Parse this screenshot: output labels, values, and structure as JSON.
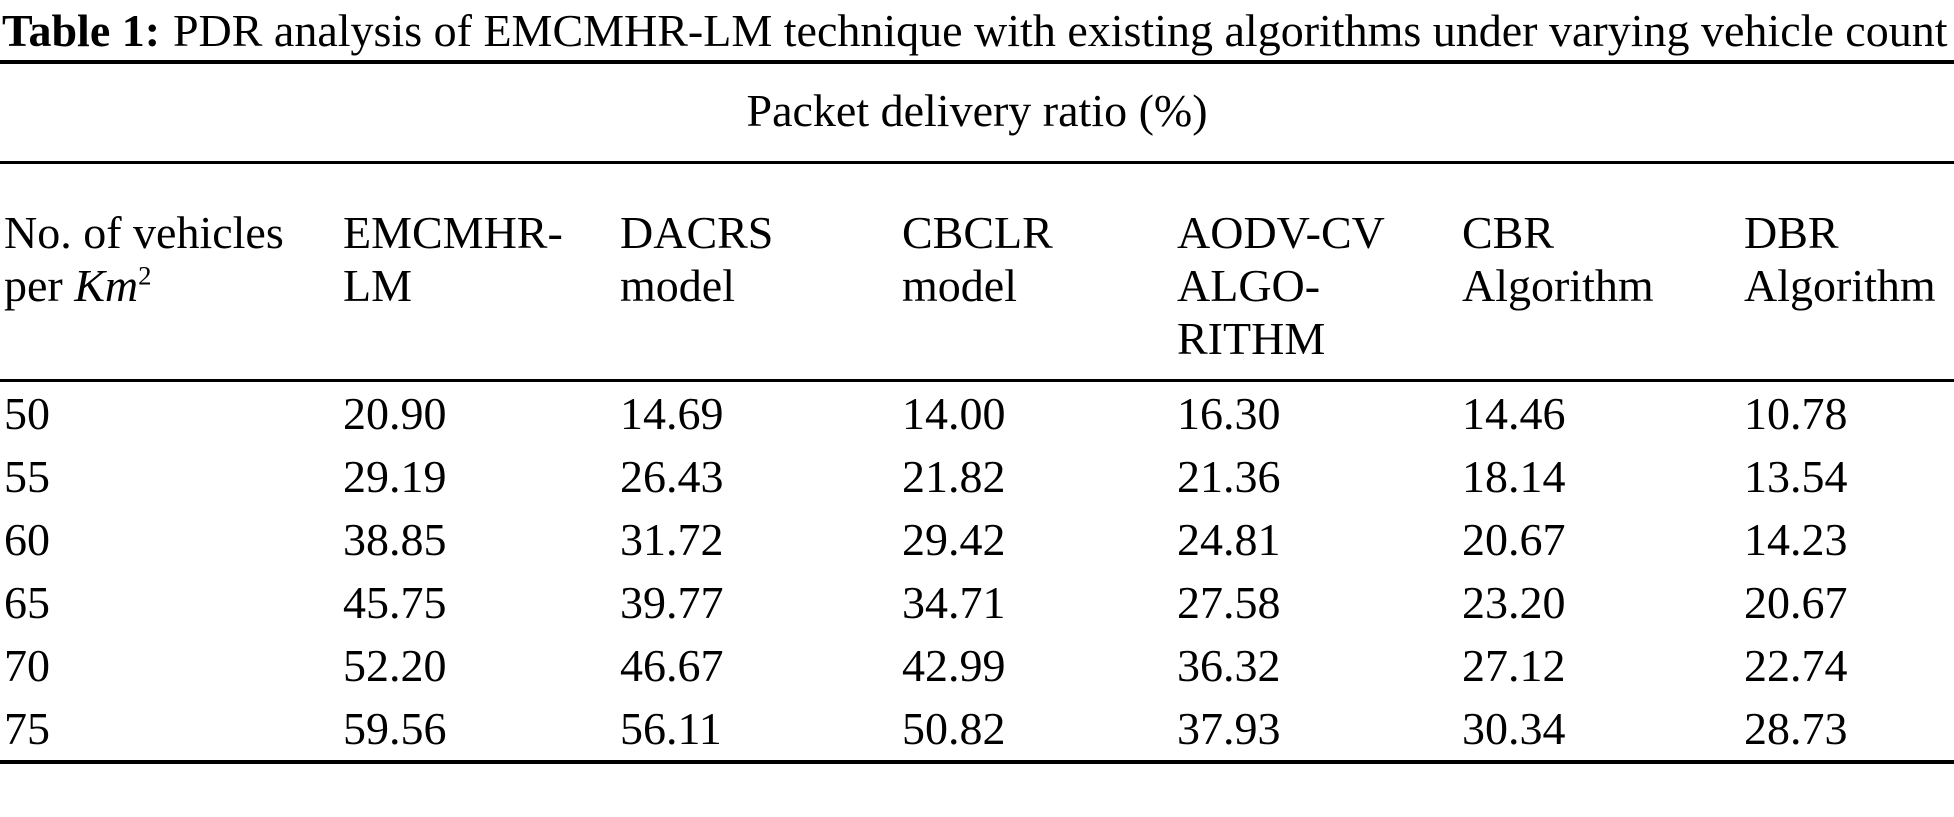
{
  "page": {
    "background_color": "#ffffff",
    "text_color": "#000000"
  },
  "caption": {
    "label": "Table 1:",
    "text": "PDR analysis of EMCMHR-LM technique with existing algorithms under varying vehicle count"
  },
  "table": {
    "span_header": "Packet delivery ratio (%)",
    "columns": [
      {
        "id": "vehicles",
        "line1": "No. of vehicles",
        "line2_prefix": "per ",
        "line2_unit": "Km",
        "line2_sup": "2"
      },
      {
        "id": "emcmhr-lm",
        "line1": "EMCMHR-",
        "line2": "LM"
      },
      {
        "id": "dacrs",
        "line1": "DACRS",
        "line2": "model"
      },
      {
        "id": "cbclr",
        "line1": "CBCLR",
        "line2": "model"
      },
      {
        "id": "aodv-cv",
        "line1": "AODV-CV",
        "line2": "ALGO-",
        "line3": "RITHM"
      },
      {
        "id": "cbr",
        "line1": "CBR",
        "line2": "Algorithm"
      },
      {
        "id": "dbr",
        "line1": "DBR",
        "line2": "Algorithm"
      }
    ],
    "rows": [
      [
        "50",
        "20.90",
        "14.69",
        "14.00",
        "16.30",
        "14.46",
        "10.78"
      ],
      [
        "55",
        "29.19",
        "26.43",
        "21.82",
        "21.36",
        "18.14",
        "13.54"
      ],
      [
        "60",
        "38.85",
        "31.72",
        "29.42",
        "24.81",
        "20.67",
        "14.23"
      ],
      [
        "65",
        "45.75",
        "39.77",
        "34.71",
        "27.58",
        "23.20",
        "20.67"
      ],
      [
        "70",
        "52.20",
        "46.67",
        "42.99",
        "36.32",
        "27.12",
        "22.74"
      ],
      [
        "75",
        "59.56",
        "56.11",
        "50.82",
        "37.93",
        "30.34",
        "28.73"
      ]
    ]
  }
}
